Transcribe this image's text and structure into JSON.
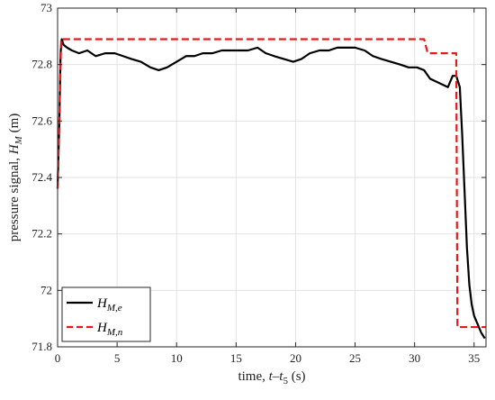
{
  "chart_data": {
    "type": "line",
    "xlabel": "time, t–t₅ (s)",
    "xlabel_parts": {
      "prefix": "time, ",
      "var": "t",
      "dash": "–",
      "var2": "t",
      "sub": "5",
      "suffix": " (s)"
    },
    "ylabel": "pressure signal, H_M (m)",
    "ylabel_parts": {
      "prefix": "pressure signal, ",
      "var": "H",
      "sub": "M",
      "suffix": " (m)"
    },
    "xlim": [
      0,
      36
    ],
    "ylim": [
      71.8,
      73
    ],
    "xticks": [
      0,
      5,
      10,
      15,
      20,
      25,
      30,
      35
    ],
    "yticks": [
      71.8,
      72,
      72.2,
      72.4,
      72.6,
      72.8,
      73
    ],
    "xtick_labels": [
      "0",
      "5",
      "10",
      "15",
      "20",
      "25",
      "30",
      "35"
    ],
    "ytick_labels": [
      "71.8",
      "72",
      "72.2",
      "72.4",
      "72.6",
      "72.8",
      "73"
    ],
    "grid": true,
    "legend_position": "bottom-left",
    "series": [
      {
        "name": "H_{M,e}",
        "legend_var": "H",
        "legend_sub": "M,e",
        "color": "#000000",
        "style": "solid",
        "x": [
          0,
          0.15,
          0.25,
          0.35,
          0.5,
          0.8,
          1.2,
          1.8,
          2.5,
          3.2,
          4.0,
          4.8,
          5.5,
          6.2,
          7.0,
          7.8,
          8.5,
          9.2,
          10.0,
          10.8,
          11.5,
          12.2,
          13.0,
          13.8,
          14.5,
          15.2,
          16.0,
          16.8,
          17.5,
          18.2,
          19.0,
          19.8,
          20.5,
          21.2,
          22.0,
          22.8,
          23.5,
          24.2,
          25.0,
          25.8,
          26.5,
          27.2,
          28.0,
          28.8,
          29.5,
          30.2,
          30.8,
          31.3,
          31.8,
          32.3,
          32.8,
          33.2,
          33.5,
          33.8,
          34.0,
          34.2,
          34.4,
          34.6,
          34.8,
          35.0,
          35.3,
          35.6,
          35.9
        ],
        "y": [
          72.36,
          72.6,
          72.84,
          72.89,
          72.87,
          72.86,
          72.85,
          72.84,
          72.85,
          72.83,
          72.84,
          72.84,
          72.83,
          72.82,
          72.81,
          72.79,
          72.78,
          72.79,
          72.81,
          72.83,
          72.83,
          72.84,
          72.84,
          72.85,
          72.85,
          72.85,
          72.85,
          72.86,
          72.84,
          72.83,
          72.82,
          72.81,
          72.82,
          72.84,
          72.85,
          72.85,
          72.86,
          72.86,
          72.86,
          72.85,
          72.83,
          72.82,
          72.81,
          72.8,
          72.79,
          72.79,
          72.78,
          72.75,
          72.74,
          72.73,
          72.72,
          72.76,
          72.76,
          72.72,
          72.55,
          72.35,
          72.15,
          72.02,
          71.95,
          71.91,
          71.88,
          71.85,
          71.83
        ]
      },
      {
        "name": "H_{M,n}",
        "legend_var": "H",
        "legend_sub": "M,n",
        "color": "#e41a1c",
        "style": "dashed",
        "x": [
          0,
          0.3,
          0.35,
          30.8,
          31.1,
          33.5,
          33.6,
          36
        ],
        "y": [
          72.36,
          72.89,
          72.89,
          72.89,
          72.84,
          72.84,
          71.87,
          71.87
        ]
      }
    ]
  }
}
